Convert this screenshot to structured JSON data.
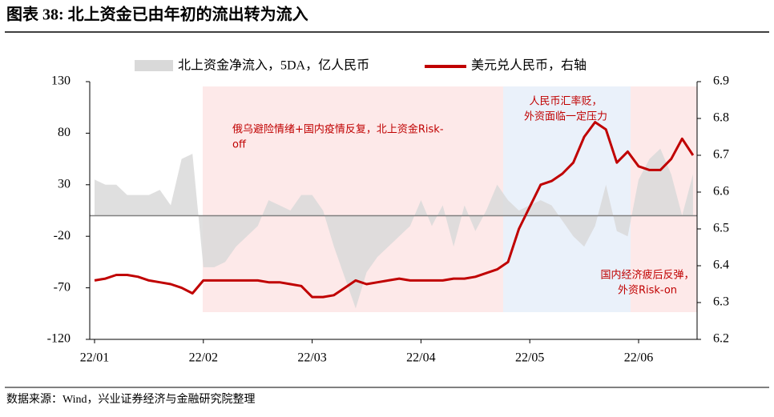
{
  "chart_data": {
    "type": "area_line",
    "title": "图表 38:  北上资金已由年初的流出转为流入",
    "source": "数据来源：Wind，兴业证券经济与金融研究院整理",
    "categories": [
      "22/01",
      null,
      null,
      null,
      null,
      null,
      null,
      null,
      null,
      null,
      "22/02",
      null,
      null,
      null,
      null,
      null,
      null,
      null,
      null,
      null,
      "22/03",
      null,
      null,
      null,
      null,
      null,
      null,
      null,
      null,
      null,
      "22/04",
      null,
      null,
      null,
      null,
      null,
      null,
      null,
      null,
      null,
      "22/05",
      null,
      null,
      null,
      null,
      null,
      null,
      null,
      null,
      null,
      "22/06",
      null,
      null,
      null,
      null,
      null
    ],
    "series": [
      {
        "name": "北上资金净流入，5DA，亿人民币",
        "color": "#d9d9d9",
        "type": "area",
        "axis": "y",
        "values": [
          35,
          30,
          30,
          20,
          20,
          20,
          25,
          10,
          55,
          60,
          -50,
          -50,
          -45,
          -30,
          -20,
          -10,
          15,
          10,
          5,
          20,
          20,
          5,
          -30,
          -60,
          -90,
          -55,
          -40,
          -30,
          -20,
          -10,
          15,
          -10,
          10,
          -30,
          10,
          -15,
          5,
          30,
          15,
          5,
          10,
          15,
          10,
          -5,
          -20,
          -30,
          -10,
          30,
          -15,
          -20,
          35,
          55,
          65,
          40,
          0,
          40
        ]
      },
      {
        "name": "美元兑人民币，右轴",
        "color": "#c00000",
        "type": "line",
        "axis": "y2",
        "values": [
          6.36,
          6.365,
          6.375,
          6.375,
          6.37,
          6.36,
          6.355,
          6.35,
          6.34,
          6.325,
          6.36,
          6.36,
          6.36,
          6.36,
          6.36,
          6.36,
          6.355,
          6.355,
          6.35,
          6.345,
          6.315,
          6.315,
          6.32,
          6.34,
          6.36,
          6.35,
          6.355,
          6.36,
          6.365,
          6.36,
          6.36,
          6.36,
          6.36,
          6.365,
          6.365,
          6.37,
          6.38,
          6.39,
          6.41,
          6.5,
          6.56,
          6.62,
          6.63,
          6.65,
          6.68,
          6.75,
          6.79,
          6.77,
          6.68,
          6.71,
          6.67,
          6.66,
          6.66,
          6.69,
          6.745,
          6.7
        ]
      }
    ],
    "ylim": [
      -120,
      130
    ],
    "yticks": [
      130,
      80,
      30,
      -20,
      -70,
      -120
    ],
    "y2lim": [
      6.2,
      6.9
    ],
    "y2ticks": [
      6.9,
      6.8,
      6.7,
      6.6,
      6.5,
      6.4,
      6.3,
      6.2
    ],
    "annotations": [
      {
        "lines": [
          "俄乌避险情绪+国内疫情反复，北上资金Risk-",
          "off"
        ]
      },
      {
        "lines": [
          "人民币汇率贬，",
          "外资面临一定压力"
        ]
      },
      {
        "lines": [
          "国内经济疲后反弹，",
          "外资Risk-on"
        ]
      }
    ]
  }
}
